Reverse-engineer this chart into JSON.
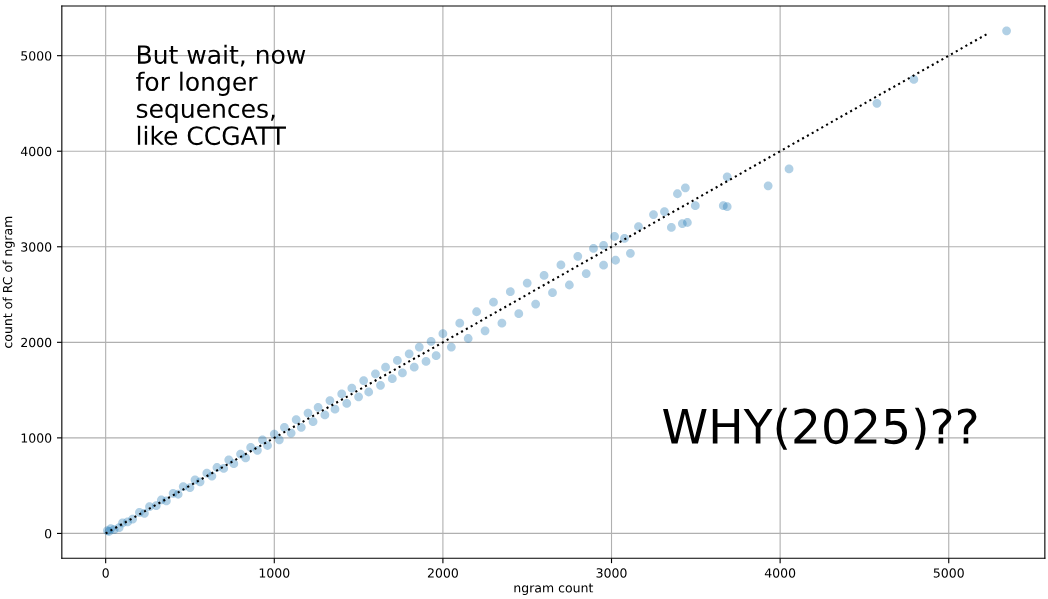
{
  "chart_data": {
    "type": "scatter",
    "xlabel": "ngram count",
    "ylabel": "count of RC of ngram",
    "annotations": [
      "But wait, now\nfor longer\nsequences,\nlike CCGATT",
      "WHY(2025)??"
    ],
    "xlim": [
      -260,
      5570
    ],
    "ylim": [
      -260,
      5520
    ],
    "xticks": [
      0,
      1000,
      2000,
      3000,
      4000,
      5000
    ],
    "yticks": [
      0,
      1000,
      2000,
      3000,
      4000,
      5000
    ],
    "grid": true,
    "marker": "circle",
    "series": [
      {
        "color": "#1f77b4",
        "x": [
          10,
          20,
          30,
          50,
          80,
          100,
          130,
          160,
          200,
          230,
          260,
          300,
          330,
          360,
          400,
          430,
          460,
          500,
          530,
          560,
          600,
          630,
          660,
          700,
          730,
          760,
          800,
          830,
          860,
          900,
          930,
          960,
          1000,
          1030,
          1060,
          1100,
          1130,
          1160,
          1200,
          1230,
          1260,
          1300,
          1330,
          1360,
          1400,
          1430,
          1460,
          1500,
          1530,
          1560,
          1600,
          1630,
          1660,
          1700,
          1730,
          1760,
          1800,
          1830,
          1860,
          1900,
          1930,
          1960,
          2000,
          2050,
          2100,
          2150,
          2200,
          2250,
          2300,
          2350,
          2400,
          2450,
          2500,
          2550,
          2600,
          2650,
          2700,
          2750,
          2800,
          2850,
          2893,
          2953,
          2953,
          3018,
          3024,
          3077,
          3112,
          3160,
          3249,
          3314,
          3355,
          3391,
          3420,
          3438,
          3450,
          3497,
          3663,
          3686,
          3686,
          3929,
          4053,
          4574,
          4793,
          5343
        ],
        "values": [
          30,
          20,
          50,
          40,
          60,
          110,
          120,
          150,
          220,
          210,
          280,
          290,
          350,
          340,
          420,
          410,
          490,
          480,
          560,
          540,
          630,
          600,
          690,
          680,
          770,
          730,
          830,
          790,
          900,
          870,
          980,
          920,
          1040,
          980,
          1110,
          1050,
          1190,
          1110,
          1260,
          1170,
          1320,
          1240,
          1390,
          1300,
          1460,
          1360,
          1520,
          1430,
          1600,
          1480,
          1670,
          1550,
          1740,
          1620,
          1810,
          1680,
          1880,
          1740,
          1950,
          1800,
          2010,
          1860,
          2090,
          1950,
          2200,
          2040,
          2320,
          2120,
          2420,
          2200,
          2530,
          2300,
          2620,
          2400,
          2700,
          2520,
          2810,
          2600,
          2900,
          2720,
          2983,
          2807,
          3015,
          3108,
          2859,
          3087,
          2931,
          3212,
          3337,
          3368,
          3202,
          3555,
          3243,
          3617,
          3254,
          3430,
          3430,
          3420,
          3732,
          3638,
          3815,
          4501,
          4751,
          5260
        ]
      },
      {
        "type": "line",
        "color": "#000000",
        "line_style": "dotted",
        "marker": "none",
        "x": [
          0,
          5240
        ],
        "values": [
          0,
          5240
        ]
      }
    ]
  }
}
